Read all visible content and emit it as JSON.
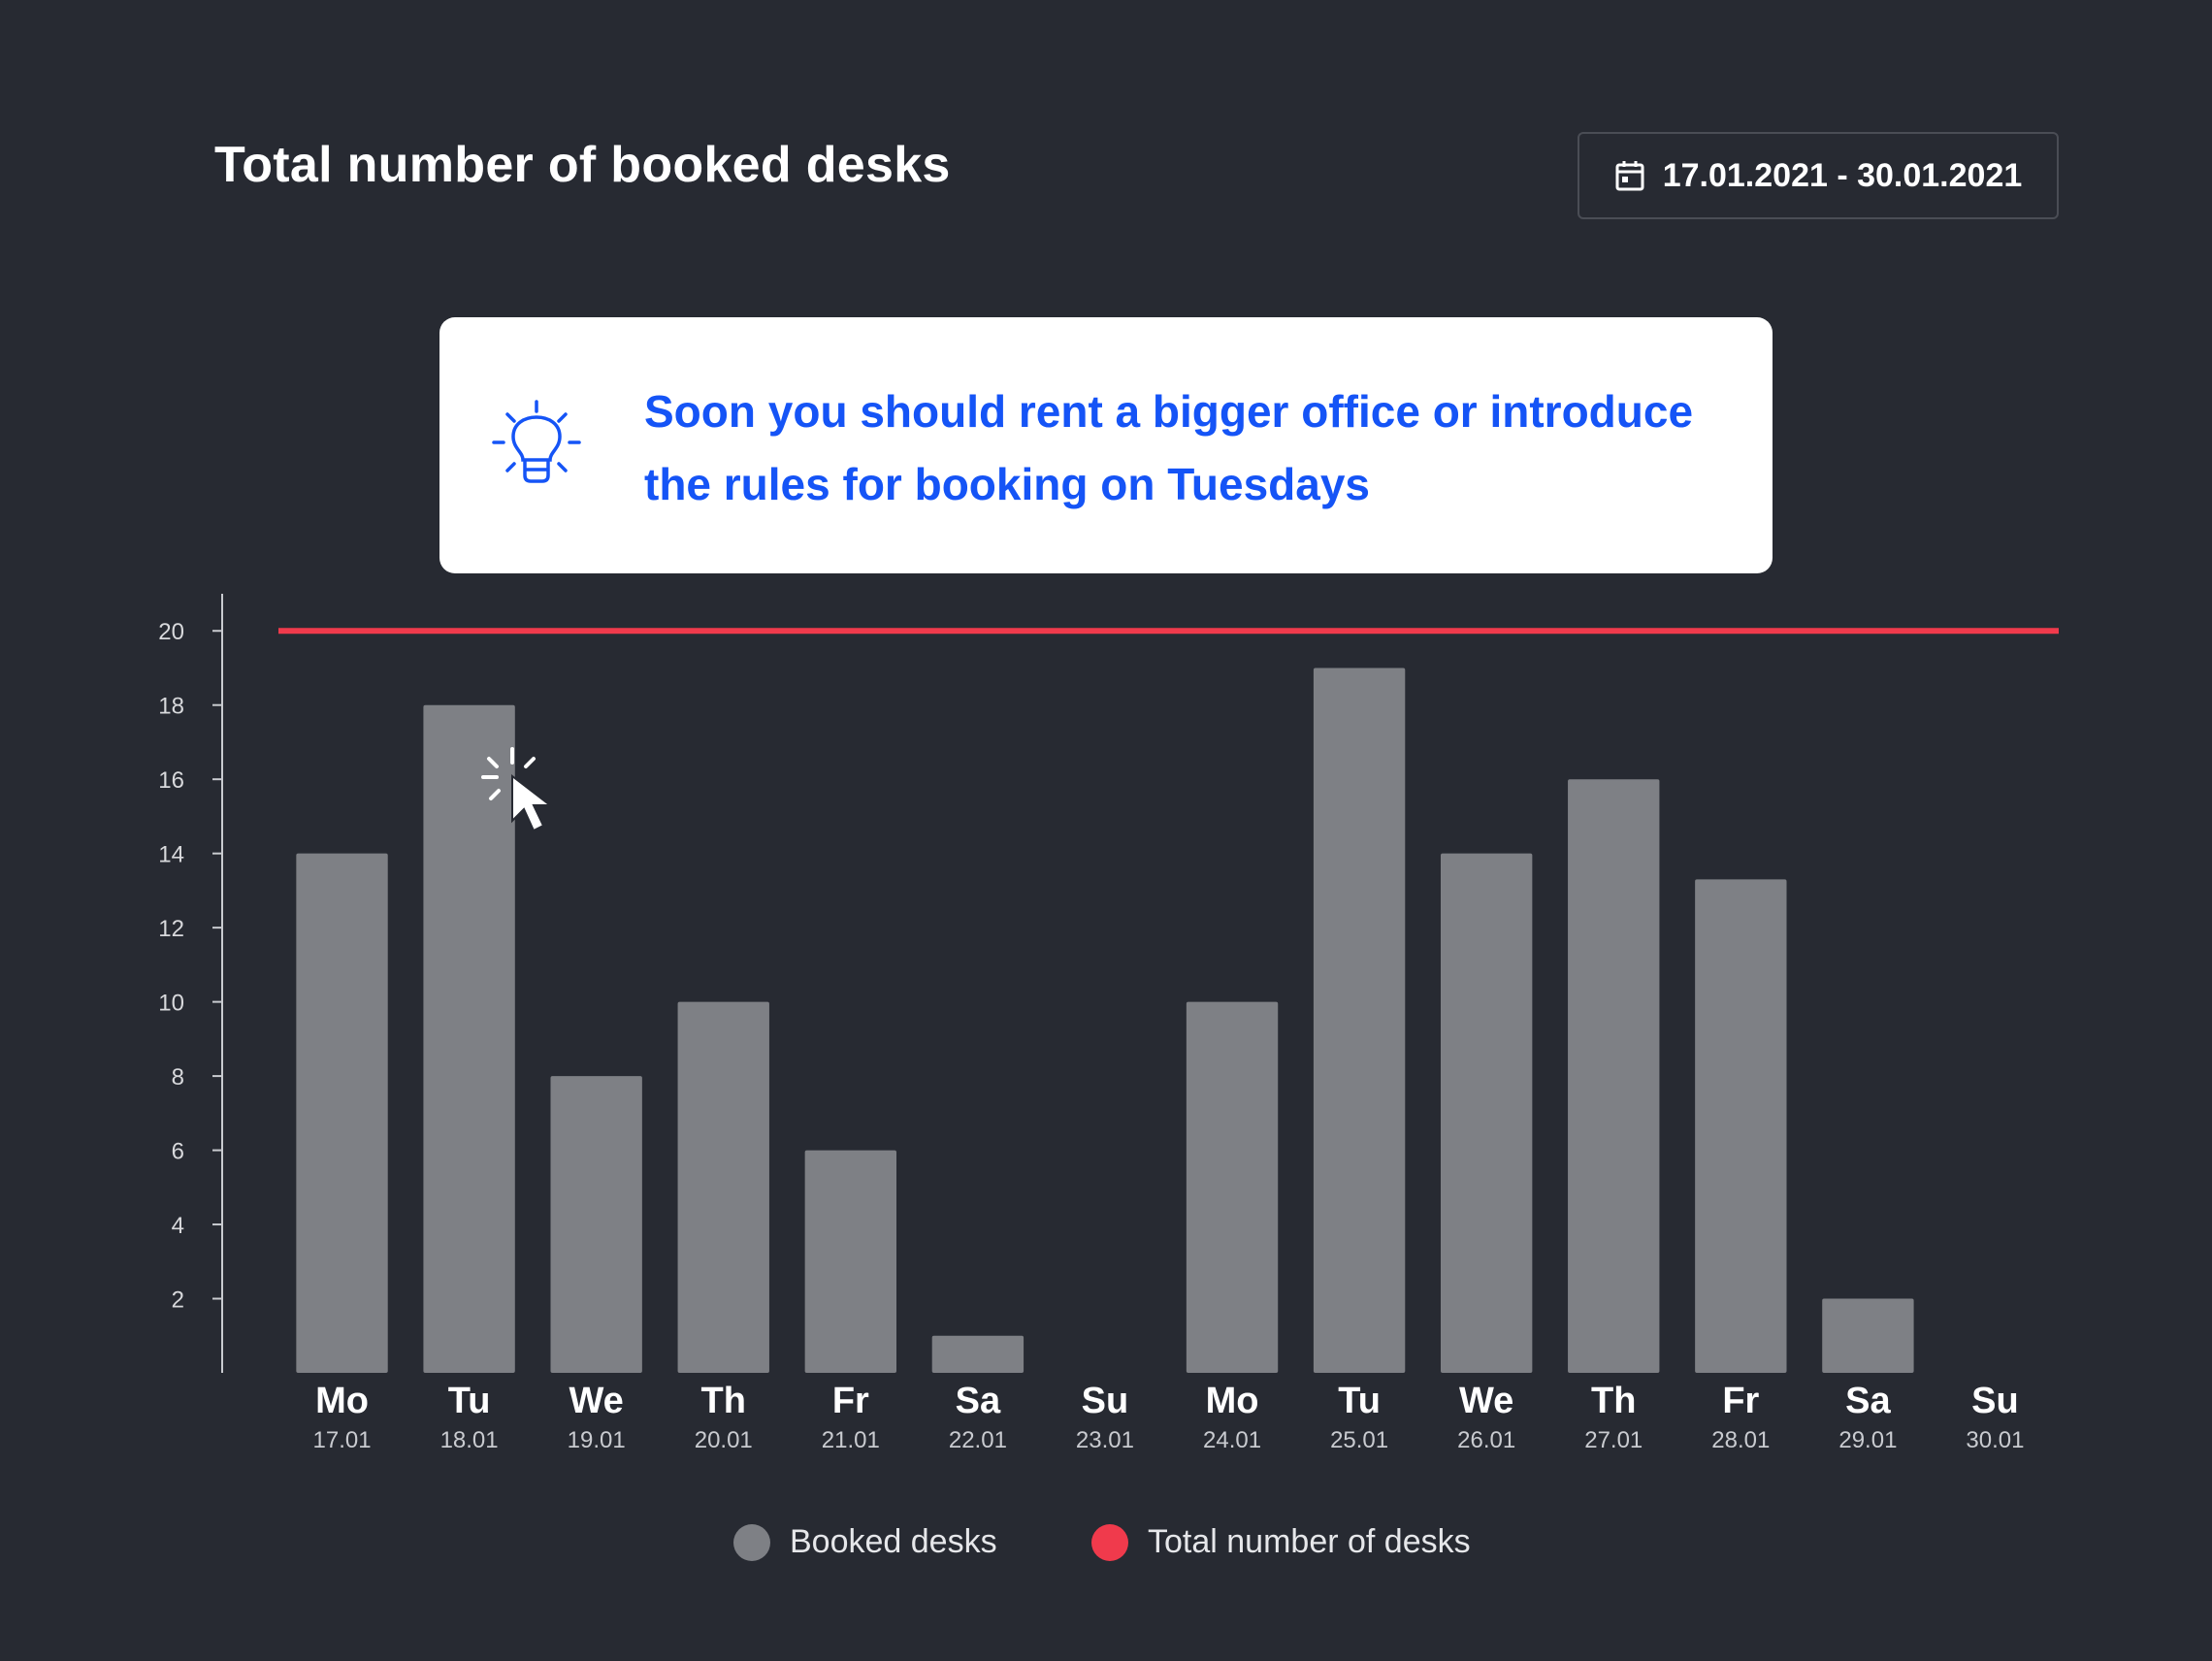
{
  "header": {
    "title": "Total number of booked desks",
    "date_range": "17.01.2021 - 30.01.2021",
    "calendar_icon": "calendar-icon"
  },
  "tip": {
    "icon": "lightbulb-icon",
    "message": "Soon you should rent a bigger office or introduce the rules for booking on Tuesdays"
  },
  "colors": {
    "background": "#272a32",
    "bar": "#7e8085",
    "capacity_line": "#f03a4c",
    "tip_text": "#1554f6"
  },
  "legend": [
    {
      "label": "Booked desks",
      "color": "#7e8085"
    },
    {
      "label": "Total number of desks",
      "color": "#f03a4c"
    }
  ],
  "chart_data": {
    "type": "bar",
    "title": "Total number of booked desks",
    "categories": [
      "Mo",
      "Tu",
      "We",
      "Th",
      "Fr",
      "Sa",
      "Su",
      "Mo",
      "Tu",
      "We",
      "Th",
      "Fr",
      "Sa",
      "Su"
    ],
    "dates": [
      "17.01",
      "18.01",
      "19.01",
      "20.01",
      "21.01",
      "22.01",
      "23.01",
      "24.01",
      "25.01",
      "26.01",
      "27.01",
      "28.01",
      "29.01",
      "30.01"
    ],
    "series": [
      {
        "name": "Booked desks",
        "type": "bar",
        "values": [
          14,
          18,
          8,
          10,
          6,
          1,
          0,
          10,
          19,
          14,
          16,
          13.3,
          2,
          0
        ]
      },
      {
        "name": "Total number of desks",
        "type": "line",
        "values": [
          20,
          20,
          20,
          20,
          20,
          20,
          20,
          20,
          20,
          20,
          20,
          20,
          20,
          20
        ]
      }
    ],
    "yticks": [
      2,
      4,
      6,
      8,
      10,
      12,
      14,
      16,
      18,
      20
    ],
    "ylim": [
      0,
      21
    ],
    "grid": false,
    "legend_position": "bottom-center"
  }
}
